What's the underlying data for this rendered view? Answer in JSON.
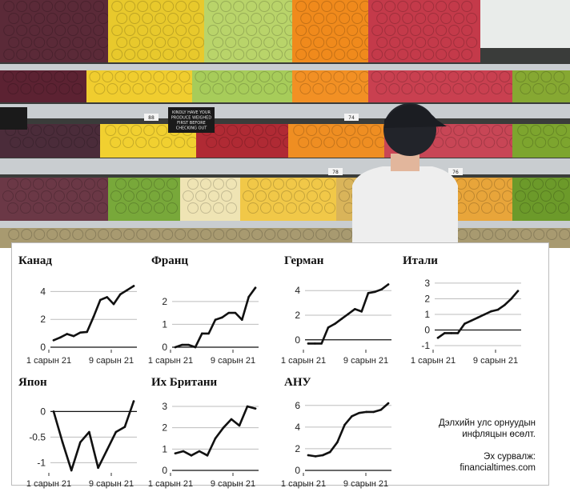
{
  "photo": {
    "shelf_signs": [
      "KINDLY HAVE YOUR",
      "PRODUCE WEIGHED",
      "FIRST BEFORE",
      "CHECKING OUT"
    ],
    "price_tags": [
      "88",
      "74",
      "78",
      "76"
    ]
  },
  "colors": {
    "line": "#111111",
    "gridline": "#bdbdbd",
    "zero_line": "#111111"
  },
  "caption": {
    "line1": "Дэлхийн улс орнуудын",
    "line2": "инфляцын өсөлт.",
    "source_line1": "Эх сурвалж:",
    "source_line2": "financialtimes.com"
  },
  "chart_data": [
    {
      "type": "line",
      "title": "Канад",
      "x_tick_labels": [
        "1 сарын 21",
        "9 сарын 21"
      ],
      "y_ticks": [
        0,
        2,
        4
      ],
      "ylim": [
        0,
        4.6
      ],
      "series": [
        {
          "values": [
            0.5,
            0.7,
            0.95,
            0.8,
            1.05,
            1.1,
            2.2,
            3.4,
            3.6,
            3.1,
            3.8,
            4.1,
            4.4
          ]
        }
      ]
    },
    {
      "type": "line",
      "title": "Франц",
      "x_tick_labels": [
        "1 сарын 21",
        "9 сарын 21"
      ],
      "y_ticks": [
        0,
        1,
        2
      ],
      "ylim": [
        0,
        2.8
      ],
      "series": [
        {
          "values": [
            0.0,
            0.1,
            0.1,
            0.0,
            0.6,
            0.6,
            1.2,
            1.3,
            1.5,
            1.5,
            1.2,
            2.2,
            2.6
          ]
        }
      ]
    },
    {
      "type": "line",
      "title": "Герман",
      "x_tick_labels": [
        "1 сарын 21",
        "9 сарын 21"
      ],
      "y_ticks": [
        0,
        2,
        4
      ],
      "ylim": [
        -0.6,
        4.6
      ],
      "series": [
        {
          "values": [
            -0.3,
            -0.3,
            -0.3,
            1.0,
            1.3,
            1.7,
            2.1,
            2.5,
            2.3,
            3.8,
            3.9,
            4.1,
            4.5
          ]
        }
      ]
    },
    {
      "type": "line",
      "title": "Итали",
      "x_tick_labels": [
        "1 сарын 21",
        "9 сарын 21"
      ],
      "y_ticks": [
        -1,
        0,
        1,
        2,
        3
      ],
      "ylim": [
        -1.1,
        3.2
      ],
      "series": [
        {
          "values": [
            -0.5,
            -0.2,
            -0.2,
            -0.2,
            0.4,
            0.6,
            0.8,
            1.0,
            1.2,
            1.3,
            1.6,
            2.0,
            2.5
          ]
        }
      ]
    },
    {
      "type": "line",
      "title": "Япон",
      "x_tick_labels": [
        "1 сарын 21",
        "9 сарын 21"
      ],
      "y_ticks": [
        -1,
        -0.5,
        0
      ],
      "ylim": [
        -1.15,
        0.1
      ],
      "series": [
        {
          "values": [
            0.0,
            -0.6,
            -1.15,
            -0.6,
            -0.4,
            -1.1,
            -0.75,
            -0.4,
            -0.3,
            0.2
          ]
        }
      ]
    },
    {
      "type": "line",
      "title": "Их Британи",
      "x_tick_labels": [
        "1 сарын 21",
        "9 сарын 21"
      ],
      "y_ticks": [
        0,
        1,
        2,
        3
      ],
      "ylim": [
        0,
        3.3
      ],
      "series": [
        {
          "values": [
            0.8,
            0.9,
            0.7,
            0.9,
            0.7,
            1.5,
            2.0,
            2.4,
            2.1,
            3.0,
            2.9
          ]
        }
      ]
    },
    {
      "type": "line",
      "title": "АНУ",
      "x_tick_labels": [
        "1 сарын 21",
        "9 сарын 21"
      ],
      "y_ticks": [
        0,
        2,
        4,
        6
      ],
      "ylim": [
        0,
        6.5
      ],
      "series": [
        {
          "values": [
            1.4,
            1.3,
            1.4,
            1.7,
            2.6,
            4.2,
            5.0,
            5.3,
            5.4,
            5.4,
            5.6,
            6.2
          ]
        }
      ]
    }
  ]
}
